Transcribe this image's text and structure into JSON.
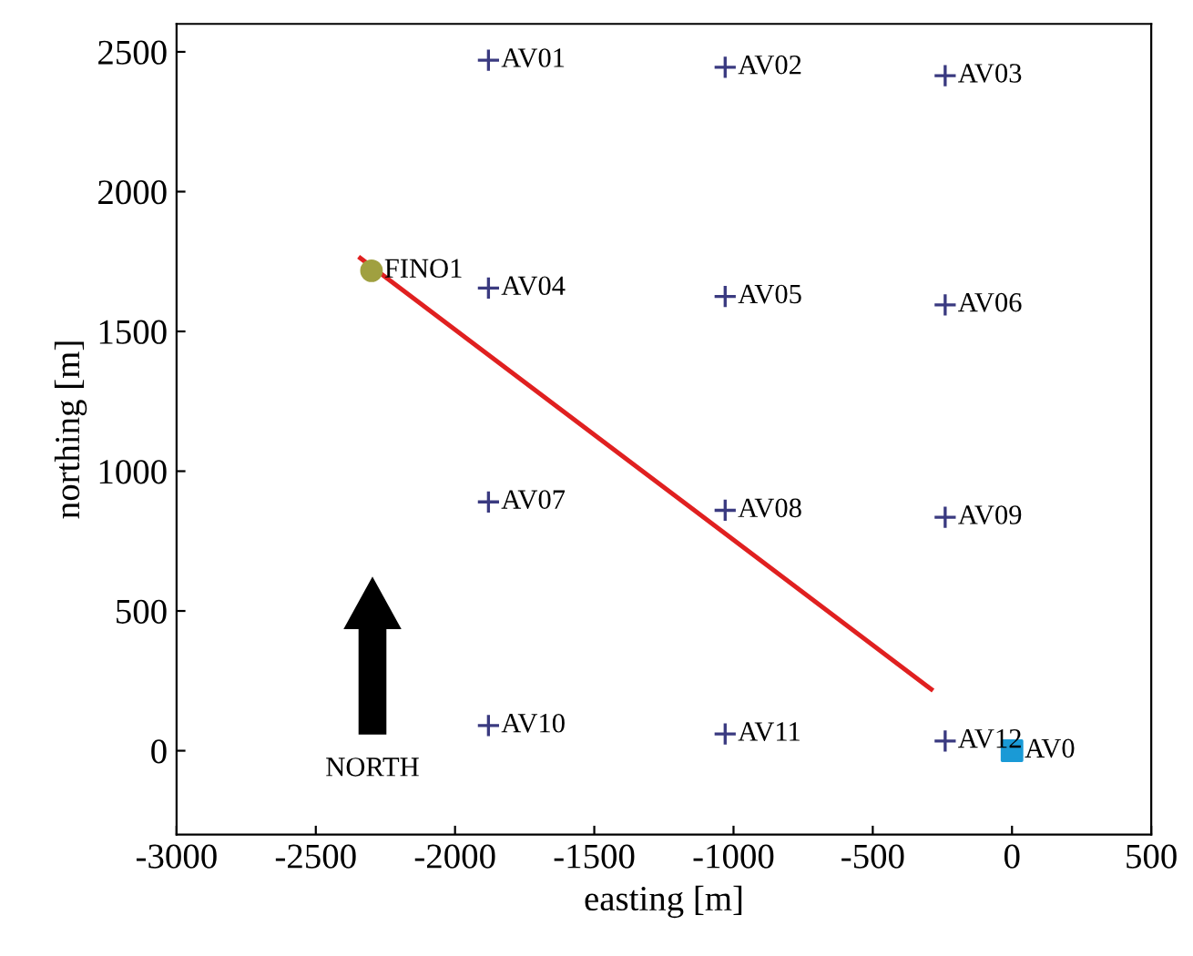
{
  "chart_data": {
    "type": "scatter",
    "xlabel": "easting [m]",
    "ylabel": "northing [m]",
    "xlim": [
      -3000,
      500
    ],
    "xticks": [
      -3000,
      -2500,
      -2000,
      -1500,
      -1000,
      -500,
      0,
      500
    ],
    "ylim": [
      -300,
      2600
    ],
    "yticks": [
      0,
      500,
      1000,
      1500,
      2000,
      2500
    ],
    "grid": false,
    "legend": false,
    "series": [
      {
        "marker": "cross",
        "color": "#3a3a80",
        "x": [
          -1880,
          -1030,
          -240,
          -1880,
          -1030,
          -240,
          -1880,
          -1030,
          -240,
          -1880,
          -1030,
          -240
        ],
        "values": [
          2470,
          2445,
          2415,
          1655,
          1625,
          1595,
          890,
          860,
          835,
          90,
          60,
          35
        ]
      },
      {
        "marker": "circle",
        "color": "#a0a040",
        "x": [
          -2300
        ],
        "values": [
          1717
        ]
      },
      {
        "marker": "square",
        "color": "#1a9ad6",
        "x": [
          0
        ],
        "values": [
          0
        ]
      },
      {
        "type": "line",
        "color": "#e02020",
        "x": [
          -2340,
          -290
        ],
        "values": [
          1762,
          220
        ]
      }
    ],
    "annotations": [
      {
        "text": "AV01",
        "x": -1880,
        "y": 2470
      },
      {
        "text": "AV02",
        "x": -1030,
        "y": 2445
      },
      {
        "text": "AV03",
        "x": -240,
        "y": 2415
      },
      {
        "text": "AV04",
        "x": -1880,
        "y": 1655
      },
      {
        "text": "AV05",
        "x": -1030,
        "y": 1625
      },
      {
        "text": "AV06",
        "x": -240,
        "y": 1595
      },
      {
        "text": "AV07",
        "x": -1880,
        "y": 890
      },
      {
        "text": "AV08",
        "x": -1030,
        "y": 860
      },
      {
        "text": "AV09",
        "x": -240,
        "y": 835
      },
      {
        "text": "AV10",
        "x": -1880,
        "y": 90
      },
      {
        "text": "AV11",
        "x": -1030,
        "y": 60
      },
      {
        "text": "AV12",
        "x": -240,
        "y": 35
      },
      {
        "text": "FINO1",
        "x": -2300,
        "y": 1717
      },
      {
        "text": "AV0",
        "x": 0,
        "y": 0
      },
      "NORTH"
    ]
  }
}
